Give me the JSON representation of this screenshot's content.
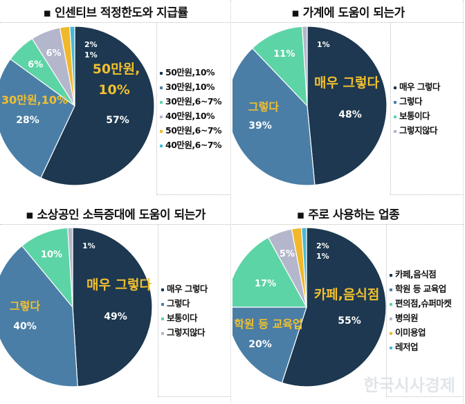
{
  "colors": [
    "#1d3850",
    "#4a7ea6",
    "#5dd4a6",
    "#b4b6cc",
    "#f0b82a",
    "#46b8d6"
  ],
  "chart_data": [
    {
      "type": "pie",
      "title": "▪ 인센티브 적정한도와 지급률",
      "categories": [
        "50만원,10%",
        "30만원,10%",
        "30만원,6~7%",
        "40만원,10%",
        "50만원,6~7%",
        "40만원,6~7%"
      ],
      "values": [
        57,
        28,
        6,
        6,
        2,
        1
      ],
      "annotations": [
        {
          "category": "50만원,10%",
          "text": "50만원,\n10%"
        },
        {
          "category": "30만원,10%",
          "text": "30만원,10%"
        }
      ],
      "legend": "right"
    },
    {
      "type": "pie",
      "title": "▪ 가계에 도움이 되는가",
      "categories": [
        "매우 그렇다",
        "그렇다",
        "보통이다",
        "그렇지않다"
      ],
      "values": [
        48,
        39,
        11,
        1
      ],
      "annotations": [
        {
          "category": "매우 그렇다",
          "text": "매우 그렇다"
        },
        {
          "category": "그렇다",
          "text": "그렇다"
        }
      ],
      "legend": "right"
    },
    {
      "type": "pie",
      "title": "▪ 소상공인 소득증대에 도움이 되는가",
      "categories": [
        "매우 그렇다",
        "그렇다",
        "보통이다",
        "그렇지않다"
      ],
      "values": [
        49,
        40,
        10,
        1
      ],
      "annotations": [
        {
          "category": "매우 그렇다",
          "text": "매우 그렇다"
        },
        {
          "category": "그렇다",
          "text": "그렇다"
        }
      ],
      "legend": "right"
    },
    {
      "type": "pie",
      "title": "▪ 주로 사용하는 업종",
      "categories": [
        "카페,음식점",
        "학원 등 교육업",
        "편의점,슈퍼마켓",
        "병의원",
        "이미용업",
        "레저업"
      ],
      "values": [
        55,
        20,
        17,
        5,
        2,
        1
      ],
      "annotations": [
        {
          "category": "카페,음식점",
          "text": "카페,음식점"
        },
        {
          "category": "학원 등 교육업",
          "text": "학원 등 교육업"
        }
      ],
      "legend": "right"
    }
  ],
  "watermark": "한국시사경제"
}
